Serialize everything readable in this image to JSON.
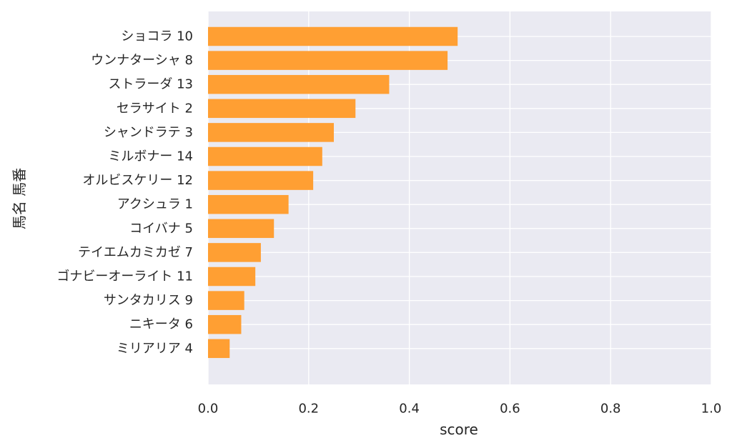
{
  "chart_data": {
    "type": "bar",
    "orientation": "horizontal",
    "categories": [
      "ショコラ 10",
      "ウンナターシャ 8",
      "ストラーダ 13",
      "セラサイト 2",
      "シャンドラテ 3",
      "ミルボナー 14",
      "オルビスケリー 12",
      "アクシュラ 1",
      "コイバナ 5",
      "テイエムカミカゼ 7",
      "ゴナビーオーライト 11",
      "サンタカリス 9",
      "ニキータ 6",
      "ミリアリア 4"
    ],
    "values": [
      0.496,
      0.476,
      0.36,
      0.293,
      0.25,
      0.227,
      0.209,
      0.16,
      0.131,
      0.105,
      0.094,
      0.072,
      0.066,
      0.043
    ],
    "xlabel": "score",
    "ylabel": "馬名 馬番",
    "xlim": [
      0,
      1.0
    ],
    "xticks": [
      "0.0",
      "0.2",
      "0.4",
      "0.6",
      "0.8",
      "1.0"
    ],
    "grid": true,
    "colors": {
      "bar": "#FF9F33",
      "background": "#EAEAF2",
      "grid": "#FFFFFF"
    }
  }
}
